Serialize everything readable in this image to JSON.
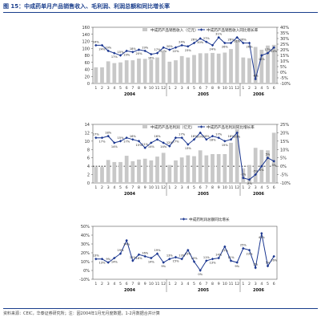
{
  "figure": {
    "title": "图 15：中成药单月产品销售收入、毛利润、利润总额和同比增长率",
    "source": "资料来源：CEIC，华泰证券研究所；注：因2004年1月无月度数据，1-2月数据合并计算"
  },
  "colors": {
    "bar": "#c8c8c8",
    "line": "#1a3690",
    "title": "#1a3e8c",
    "axis": "#555555"
  },
  "chart_data": [
    {
      "type": "bar",
      "title": "",
      "legend": [
        "中成药产品销售收入（亿元）",
        "中成药产品销售收入同比增长率"
      ],
      "legend_placement": "top",
      "categories": [
        "1",
        "2",
        "3",
        "4",
        "5",
        "6",
        "7",
        "8",
        "9",
        "10",
        "11",
        "12",
        "1",
        "2",
        "3",
        "4",
        "5",
        "6",
        "7",
        "8",
        "9",
        "10",
        "11",
        "12",
        "1",
        "2",
        "3",
        "4",
        "5",
        "6"
      ],
      "year_labels": [
        {
          "label": "2004",
          "start": 0,
          "end": 11
        },
        {
          "label": "2005",
          "start": 12,
          "end": 23
        },
        {
          "label": "2006",
          "start": 24,
          "end": 29
        }
      ],
      "y_left": {
        "ylim": [
          0,
          160
        ],
        "ticks": [
          0,
          20,
          40,
          60,
          80,
          100,
          120,
          140,
          160
        ]
      },
      "y_right": {
        "ylim": [
          -10,
          40
        ],
        "ticks": [
          "-10%",
          "-5%",
          "0%",
          "5%",
          "10%",
          "15%",
          "20%",
          "25%",
          "30%",
          "35%",
          "40%"
        ],
        "values": [
          -10,
          -5,
          0,
          5,
          10,
          15,
          20,
          25,
          30,
          35,
          40
        ]
      },
      "series": [
        {
          "name": "中成药产品销售收入（亿元）",
          "kind": "bar",
          "axis": "left",
          "values": [
            46,
            46,
            63,
            58,
            60,
            66,
            66,
            71,
            70,
            68,
            74,
            90,
            62,
            66,
            78,
            74,
            81,
            86,
            86,
            87,
            85,
            88,
            98,
            124,
            74,
            72,
            104,
            96,
            108,
            110
          ]
        },
        {
          "name": "中成药产品销售收入同比增长率",
          "kind": "line",
          "axis": "right",
          "values": [
            24,
            24,
            19,
            17,
            15,
            19,
            18,
            20,
            19,
            16,
            17,
            22,
            20,
            22,
            24,
            23,
            26,
            30,
            27,
            24,
            31,
            26,
            26,
            31,
            26,
            26,
            -6,
            15,
            17,
            22
          ]
        }
      ],
      "point_labels": [
        "24%",
        "24%",
        "19%",
        "17%",
        "15%",
        "19%",
        "18%",
        "20%",
        "19%",
        "16%",
        "17%",
        "22%",
        "20%",
        "22%",
        "24%",
        "23%",
        "26%",
        "30%",
        "27%",
        "24%",
        "31%",
        "26%",
        "26%",
        "31%",
        "26%",
        "26%",
        "-6%",
        "15%",
        "17%",
        "22%"
      ]
    },
    {
      "type": "bar",
      "title": "",
      "legend": [
        "中成药产品毛利润（亿元）",
        "中成药产品毛利润同比增长率"
      ],
      "legend_placement": "top",
      "categories": [
        "1",
        "2",
        "3",
        "4",
        "5",
        "6",
        "7",
        "8",
        "9",
        "10",
        "11",
        "12",
        "1",
        "2",
        "3",
        "4",
        "5",
        "6",
        "7",
        "8",
        "9",
        "10",
        "11",
        "12",
        "1",
        "2",
        "3",
        "4",
        "5",
        "6"
      ],
      "year_labels": [
        {
          "label": "2004",
          "start": 0,
          "end": 11
        },
        {
          "label": "2005",
          "start": 12,
          "end": 23
        },
        {
          "label": "2006",
          "start": 24,
          "end": 29
        }
      ],
      "y_left": {
        "ylim": [
          0,
          14
        ],
        "ticks": [
          0,
          2,
          4,
          6,
          8,
          10,
          12,
          14
        ]
      },
      "y_right": {
        "ylim": [
          -10,
          25
        ],
        "ticks": [
          "-10%",
          "-5%",
          "0%",
          "5%",
          "10%",
          "15%",
          "20%",
          "25%"
        ],
        "values": [
          -10,
          -5,
          0,
          5,
          10,
          15,
          20,
          25
        ]
      },
      "series": [
        {
          "name": "中成药产品毛利润（亿元）",
          "kind": "bar",
          "axis": "left",
          "values": [
            3.8,
            3.8,
            5.5,
            5.0,
            5.0,
            6.5,
            5.2,
            5.6,
            5.8,
            5.4,
            6.3,
            7.2,
            4.3,
            5.4,
            6.1,
            6.6,
            6.4,
            7.8,
            6.6,
            6.9,
            6.9,
            6.9,
            9.6,
            12.8,
            3.5,
            4.3,
            8.4,
            7.9,
            7.8,
            12.0
          ]
        },
        {
          "name": "中成药产品毛利润同比增长率",
          "kind": "line",
          "axis": "right",
          "values": [
            17,
            17,
            18,
            14,
            15,
            17,
            16,
            15,
            11,
            14,
            16,
            14,
            12,
            17,
            17,
            13,
            16,
            20,
            16,
            18,
            17,
            15,
            16,
            20,
            -7,
            -8,
            -5,
            0,
            5,
            3
          ]
        }
      ],
      "point_labels": [
        "17%",
        "17%",
        "18%",
        "14%",
        "15%",
        "17%",
        "16%",
        "15%",
        "11%",
        "14%",
        "16%",
        "14%",
        "12%",
        "17%",
        "17%",
        "13%",
        "16%",
        "20%",
        "16%",
        "18%",
        "17%",
        "15%",
        "16%",
        "20%",
        "-7%",
        "-8%",
        "-5%",
        "0%",
        "5%",
        "3%"
      ],
      "dashed_zero_line": true
    },
    {
      "type": "line",
      "title": "",
      "legend": [
        "中成药利润总额同比增长"
      ],
      "legend_placement": "top",
      "categories": [
        "1",
        "2",
        "3",
        "4",
        "5",
        "6",
        "7",
        "8",
        "9",
        "10",
        "11",
        "12",
        "1",
        "2",
        "3",
        "4",
        "5",
        "6",
        "7",
        "8",
        "9",
        "10",
        "11",
        "12",
        "1",
        "2",
        "3",
        "4",
        "5",
        "6"
      ],
      "year_labels": [
        {
          "label": "2004",
          "start": 0,
          "end": 11
        },
        {
          "label": "2005",
          "start": 12,
          "end": 23
        },
        {
          "label": "2006",
          "start": 24,
          "end": 29
        }
      ],
      "y_left": {
        "ylim": [
          -10,
          50
        ],
        "ticks": [
          "-10%",
          "0%",
          "10%",
          "20%",
          "30%",
          "40%",
          "50%"
        ],
        "values": [
          -10,
          0,
          10,
          20,
          30,
          40,
          50
        ]
      },
      "series": [
        {
          "name": "中成药利润总额同比增长",
          "kind": "line",
          "axis": "left",
          "values": [
            13,
            13,
            9,
            14,
            19,
            34,
            11,
            18,
            16,
            14,
            19,
            9,
            13,
            15,
            13,
            23,
            10,
            0,
            11,
            13,
            14,
            27,
            11,
            9,
            25,
            23,
            3,
            42,
            5,
            16
          ]
        }
      ],
      "point_labels": [
        "13%",
        "13%",
        "9%",
        "14%",
        "19%",
        "34%",
        "11%",
        "18%",
        "16%",
        "14%",
        "19%",
        "9%",
        "13%",
        "15%",
        "13%",
        "23%",
        "10%",
        "0%",
        "11%",
        "13%",
        "14%",
        "27%",
        "11%",
        "9%",
        "25%",
        "23%",
        "3%",
        "42%",
        "5%",
        "16%"
      ]
    }
  ]
}
